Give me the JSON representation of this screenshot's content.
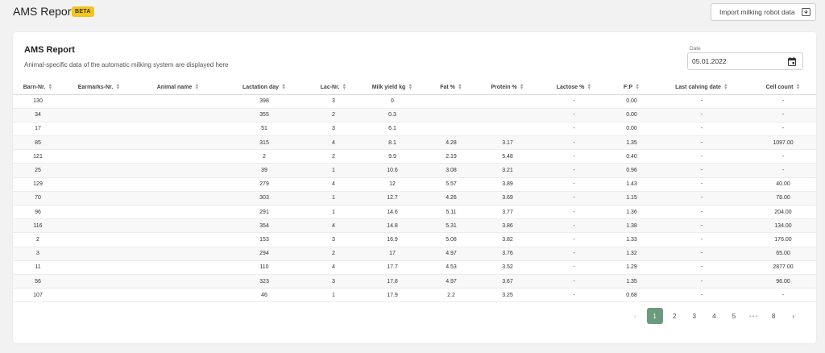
{
  "header": {
    "title": "AMS Report",
    "badge": "BETA",
    "import_label": "Import milking robot data",
    "import_icon": "download-tray-icon"
  },
  "card": {
    "title": "AMS Report",
    "subtitle": "Animal-specific data of the automatic milking system are displayed here"
  },
  "date": {
    "label": "Date",
    "value": "05.01.2022",
    "icon": "calendar-icon"
  },
  "table": {
    "columns": [
      "Barn-Nr.",
      "Earmarks-Nr.",
      "Animal name",
      "Lactation day",
      "Lac-Nr.",
      "Milk yield kg",
      "Fat %",
      "Protein %",
      "Lactose %",
      "F:P",
      "Last calving date",
      "Cell count"
    ],
    "rows": [
      [
        "130",
        "",
        "",
        "398",
        "3",
        "0",
        "",
        "",
        "-",
        "0.00",
        "-",
        "-"
      ],
      [
        "34",
        "",
        "",
        "355",
        "2",
        "0.3",
        "",
        "",
        "-",
        "0.00",
        "-",
        "-"
      ],
      [
        "17",
        "",
        "",
        "51",
        "3",
        "6.1",
        "",
        "",
        "-",
        "0.00",
        "-",
        "-"
      ],
      [
        "85",
        "",
        "",
        "315",
        "4",
        "8.1",
        "4.28",
        "3.17",
        "-",
        "1.35",
        "-",
        "1097.00"
      ],
      [
        "121",
        "",
        "",
        "2",
        "2",
        "9.9",
        "2.19",
        "5.48",
        "-",
        "0.40",
        "-",
        "-"
      ],
      [
        "25",
        "",
        "",
        "39",
        "1",
        "10.6",
        "3.08",
        "3.21",
        "-",
        "0.96",
        "-",
        "-"
      ],
      [
        "129",
        "",
        "",
        "279",
        "4",
        "12",
        "5.57",
        "3.89",
        "-",
        "1.43",
        "-",
        "40.00"
      ],
      [
        "70",
        "",
        "",
        "303",
        "1",
        "12.7",
        "4.26",
        "3.69",
        "-",
        "1.15",
        "-",
        "78.00"
      ],
      [
        "96",
        "",
        "",
        "291",
        "1",
        "14.6",
        "5.11",
        "3.77",
        "-",
        "1.36",
        "-",
        "204.00"
      ],
      [
        "116",
        "",
        "",
        "354",
        "4",
        "14.8",
        "5.31",
        "3.86",
        "-",
        "1.38",
        "-",
        "134.00"
      ],
      [
        "2",
        "",
        "",
        "153",
        "3",
        "16.9",
        "5.08",
        "3.82",
        "-",
        "1.33",
        "-",
        "176.00"
      ],
      [
        "3",
        "",
        "",
        "294",
        "2",
        "17",
        "4.97",
        "3.76",
        "-",
        "1.32",
        "-",
        "65.00"
      ],
      [
        "11",
        "",
        "",
        "110",
        "4",
        "17.7",
        "4.53",
        "3.52",
        "-",
        "1.29",
        "-",
        "2877.00"
      ],
      [
        "56",
        "",
        "",
        "323",
        "3",
        "17.8",
        "4.97",
        "3.67",
        "-",
        "1.35",
        "-",
        "96.00"
      ],
      [
        "107",
        "",
        "",
        "46",
        "1",
        "17.9",
        "2.2",
        "3.25",
        "-",
        "0.68",
        "-",
        "-"
      ]
    ]
  },
  "pagination": {
    "prev": "‹",
    "pages": [
      "1",
      "2",
      "3",
      "4",
      "5"
    ],
    "ellipsis": "•••",
    "last": "8",
    "next": "›",
    "active": "1",
    "active_color": "#6b9a7d"
  },
  "colors": {
    "badge": "#f5c518",
    "background": "#f2f2f2"
  }
}
